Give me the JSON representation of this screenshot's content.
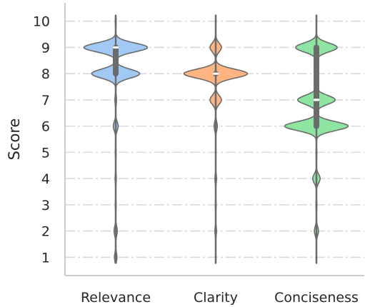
{
  "chart_data": {
    "type": "violin",
    "ylabel": "Score",
    "ylim": [
      0.3,
      10.7
    ],
    "yticks": [
      1,
      2,
      3,
      4,
      5,
      6,
      7,
      8,
      9,
      10
    ],
    "grid": true,
    "categories": [
      "Relevance",
      "Clarity",
      "Conciseness"
    ],
    "series": [
      {
        "color": "#a1c9f4",
        "range": [
          1,
          10
        ],
        "q1": 8,
        "median": 9,
        "q3": 9,
        "density": [
          [
            1,
            0.03
          ],
          [
            2,
            0.04
          ],
          [
            3,
            0.01
          ],
          [
            4,
            0.015
          ],
          [
            5,
            0.01
          ],
          [
            6,
            0.06
          ],
          [
            7,
            0.02
          ],
          [
            8,
            0.59
          ],
          [
            9,
            0.78
          ],
          [
            10,
            0.01
          ]
        ]
      },
      {
        "color": "#ffb482",
        "range": [
          1,
          10
        ],
        "q1": 8,
        "median": 8,
        "q3": 8,
        "density": [
          [
            1,
            0.005
          ],
          [
            2,
            0.02
          ],
          [
            3,
            0.01
          ],
          [
            4,
            0.02
          ],
          [
            5,
            0.005
          ],
          [
            6,
            0.04
          ],
          [
            7,
            0.14
          ],
          [
            8,
            0.78
          ],
          [
            9,
            0.14
          ],
          [
            10,
            0.005
          ]
        ]
      },
      {
        "color": "#8de5a1",
        "range": [
          1,
          10
        ],
        "q1": 6,
        "median": 7,
        "q3": 9,
        "density": [
          [
            1,
            0.005
          ],
          [
            2,
            0.05
          ],
          [
            3,
            0.01
          ],
          [
            4,
            0.09
          ],
          [
            5,
            0.01
          ],
          [
            6,
            0.78
          ],
          [
            7,
            0.46
          ],
          [
            8,
            0.05
          ],
          [
            9,
            0.51
          ],
          [
            10,
            0.005
          ]
        ]
      }
    ]
  }
}
